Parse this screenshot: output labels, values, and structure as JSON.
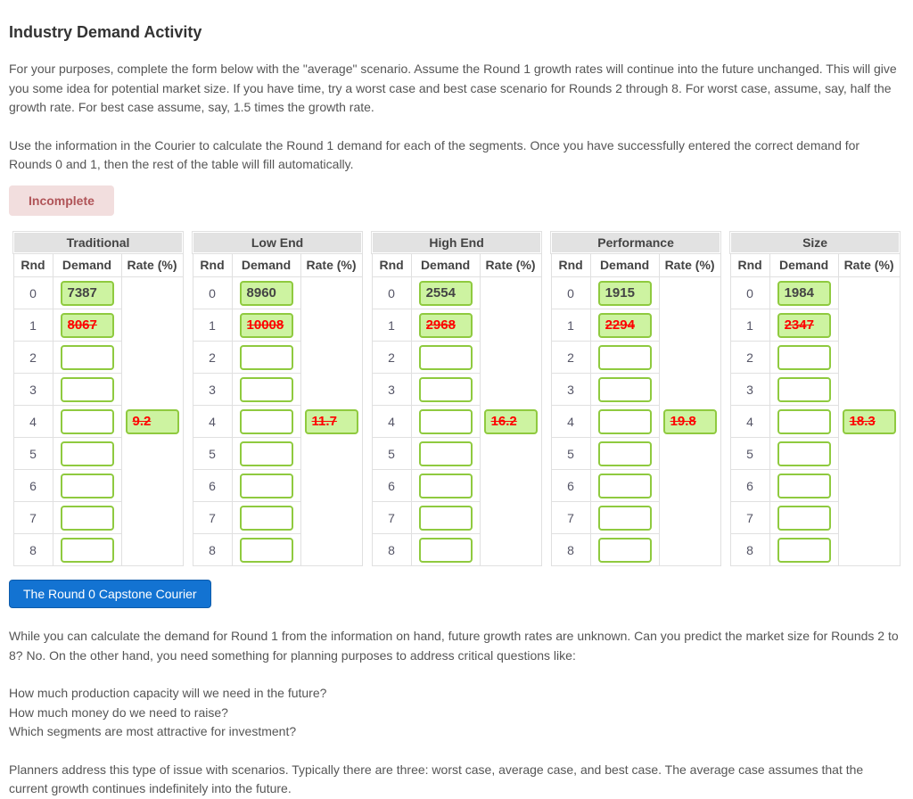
{
  "header": {
    "title": "Industry Demand Activity"
  },
  "intro": {
    "p1": "For your purposes, complete the form below with the \"average\" scenario. Assume the Round 1 growth rates will continue into the future unchanged. This will give you some idea for potential market size. If you have time, try a worst case and best case scenario for Rounds 2 through 8. For worst case, assume, say, half the growth rate. For best case assume, say, 1.5 times the growth rate.",
    "p2": "Use the information in the Courier to calculate the Round 1 demand for each of the segments. Once you have successfully entered the correct demand for Rounds 0 and 1, then the rest of the table will fill automatically."
  },
  "status": {
    "label": "Incomplete"
  },
  "demand_tables": {
    "columns": [
      "Rnd",
      "Demand",
      "Rate (%)"
    ],
    "rounds": [
      "0",
      "1",
      "2",
      "3",
      "4",
      "5",
      "6",
      "7",
      "8"
    ],
    "struck_values_note": "round1 demand and rate values shown struck-through in red",
    "segments": [
      {
        "name": "Traditional",
        "round0_demand": "7387",
        "round1_demand": "8067",
        "rate": "9.2"
      },
      {
        "name": "Low End",
        "round0_demand": "8960",
        "round1_demand": "10008",
        "rate": "11.7"
      },
      {
        "name": "High End",
        "round0_demand": "2554",
        "round1_demand": "2968",
        "rate": "16.2"
      },
      {
        "name": "Performance",
        "round0_demand": "1915",
        "round1_demand": "2294",
        "rate": "19.8"
      },
      {
        "name": "Size",
        "round0_demand": "1984",
        "round1_demand": "2347",
        "rate": "18.3"
      }
    ]
  },
  "courier": {
    "button_label": "The Round 0 Capstone Courier"
  },
  "outro": {
    "p1": "While you can calculate the demand for Round 1 from the information on hand, future growth rates are unknown. Can you predict the market size for Rounds 2 to 8? No. On the other hand, you need something for planning purposes to address critical questions like:",
    "questions": [
      "How much production capacity will we need in the future?",
      "How much money do we need to raise?",
      "Which segments are most attractive for investment?"
    ],
    "p2": "Planners address this type of issue with scenarios. Typically there are three: worst case, average case, and best case. The average case assumes that the current growth continues indefinitely into the future."
  },
  "colors": {
    "input_green_fill": "#cdf3a1",
    "input_green_border": "#8fca3f",
    "struck_red": "#ff0000",
    "badge_bg": "#f2dede",
    "badge_text": "#b05458",
    "button_bg": "#1373d2",
    "button_border": "#0f5cab",
    "table_header_bg": "#e2e2e2",
    "table_border": "#e0e0e0",
    "heading_text": "#333333",
    "body_text": "#555555"
  }
}
